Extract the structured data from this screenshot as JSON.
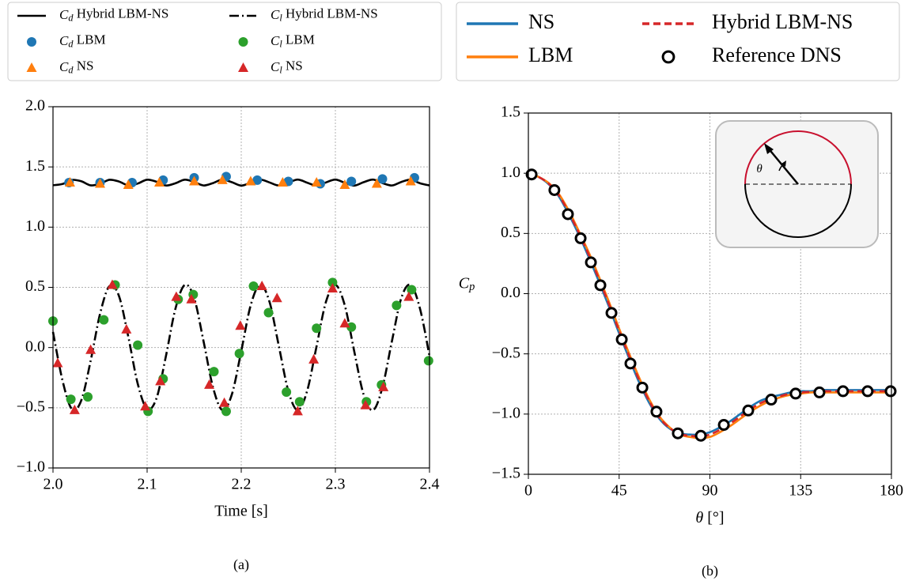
{
  "chart_data": [
    {
      "type": "line",
      "panel_label": "(a)",
      "xlabel": "Time [s]",
      "xlim": [
        2.0,
        2.4
      ],
      "xticks": [
        {
          "value": 2.0,
          "label": "2.0"
        },
        {
          "value": 2.1,
          "label": "2.1"
        },
        {
          "value": 2.2,
          "label": "2.2"
        },
        {
          "value": 2.3,
          "label": "2.3"
        },
        {
          "value": 2.4,
          "label": "2.4"
        }
      ],
      "ylim": [
        -1.0,
        2.0
      ],
      "yticks": [
        {
          "value": -1.0,
          "label": "−1.0"
        },
        {
          "value": -0.5,
          "label": "−0.5"
        },
        {
          "value": 0.0,
          "label": "0.0"
        },
        {
          "value": 0.5,
          "label": "0.5"
        },
        {
          "value": 1.0,
          "label": "1.0"
        },
        {
          "value": 1.5,
          "label": "1.5"
        },
        {
          "value": 2.0,
          "label": "2.0"
        }
      ],
      "grid": true,
      "series": [
        {
          "name": "Cd Hybrid LBM-NS",
          "color": "#000000",
          "style": "solid",
          "x": [
            2.0,
            2.01,
            2.02,
            2.03,
            2.04,
            2.05,
            2.06,
            2.07,
            2.08,
            2.09,
            2.1,
            2.11,
            2.12,
            2.13,
            2.14,
            2.15,
            2.16,
            2.17,
            2.18,
            2.19,
            2.2,
            2.21,
            2.22,
            2.23,
            2.24,
            2.25,
            2.26,
            2.27,
            2.28,
            2.29,
            2.3,
            2.31,
            2.32,
            2.33,
            2.34,
            2.35,
            2.36,
            2.37,
            2.38,
            2.39,
            2.4
          ],
          "values": [
            1.348,
            1.358,
            1.392,
            1.381,
            1.347,
            1.36,
            1.393,
            1.379,
            1.347,
            1.362,
            1.394,
            1.377,
            1.346,
            1.364,
            1.394,
            1.375,
            1.346,
            1.366,
            1.395,
            1.373,
            1.345,
            1.368,
            1.395,
            1.371,
            1.345,
            1.369,
            1.395,
            1.369,
            1.345,
            1.371,
            1.395,
            1.368,
            1.345,
            1.373,
            1.395,
            1.366,
            1.346,
            1.375,
            1.394,
            1.364,
            1.346
          ]
        },
        {
          "name": "Cd LBM",
          "color": "#1f77b4",
          "style": "marker",
          "marker": "circle",
          "x": [
            2.017,
            2.05,
            2.084,
            2.117,
            2.15,
            2.184,
            2.217,
            2.25,
            2.284,
            2.317,
            2.35,
            2.384
          ],
          "values": [
            1.37,
            1.37,
            1.37,
            1.39,
            1.41,
            1.42,
            1.39,
            1.38,
            1.36,
            1.38,
            1.4,
            1.41
          ]
        },
        {
          "name": "Cd NS",
          "color": "#ff7f0e",
          "style": "marker",
          "marker": "triangle",
          "x": [
            2.018,
            2.05,
            2.08,
            2.113,
            2.15,
            2.18,
            2.21,
            2.244,
            2.28,
            2.31,
            2.344,
            2.38
          ],
          "values": [
            1.37,
            1.36,
            1.35,
            1.37,
            1.38,
            1.39,
            1.38,
            1.37,
            1.37,
            1.35,
            1.36,
            1.38
          ]
        },
        {
          "name": "Cl Hybrid LBM-NS",
          "color": "#000000",
          "style": "dashdot",
          "x": [
            2.0,
            2.01,
            2.02,
            2.03,
            2.04,
            2.05,
            2.06,
            2.07,
            2.08,
            2.09,
            2.1,
            2.11,
            2.12,
            2.13,
            2.14,
            2.15,
            2.16,
            2.17,
            2.18,
            2.19,
            2.2,
            2.21,
            2.22,
            2.23,
            2.24,
            2.25,
            2.26,
            2.27,
            2.28,
            2.29,
            2.3,
            2.31,
            2.32,
            2.33,
            2.34,
            2.35,
            2.36,
            2.37,
            2.38,
            2.39,
            2.4
          ],
          "values": [
            0.13,
            -0.27,
            -0.51,
            -0.44,
            -0.11,
            0.28,
            0.51,
            0.43,
            0.09,
            -0.3,
            -0.51,
            -0.42,
            -0.07,
            0.32,
            0.52,
            0.41,
            0.05,
            -0.33,
            -0.52,
            -0.39,
            -0.03,
            0.35,
            0.52,
            0.38,
            0.01,
            -0.36,
            -0.52,
            -0.36,
            0.01,
            0.38,
            0.52,
            0.35,
            -0.03,
            -0.39,
            -0.52,
            -0.33,
            0.05,
            0.41,
            0.52,
            0.32,
            -0.07
          ]
        },
        {
          "name": "Cl LBM",
          "color": "#2ca02c",
          "style": "marker",
          "marker": "circle",
          "x": [
            2.0,
            2.019,
            2.037,
            2.054,
            2.066,
            2.09,
            2.101,
            2.117,
            2.133,
            2.149,
            2.171,
            2.184,
            2.198,
            2.213,
            2.229,
            2.248,
            2.262,
            2.28,
            2.297,
            2.317,
            2.333,
            2.349,
            2.365,
            2.381,
            2.399
          ],
          "values": [
            0.22,
            -0.43,
            -0.41,
            0.23,
            0.52,
            0.02,
            -0.53,
            -0.26,
            0.4,
            0.44,
            -0.2,
            -0.53,
            -0.05,
            0.51,
            0.29,
            -0.37,
            -0.45,
            0.16,
            0.54,
            0.17,
            -0.45,
            -0.31,
            0.35,
            0.48,
            -0.11
          ]
        },
        {
          "name": "Cl NS",
          "color": "#d62728",
          "style": "marker",
          "marker": "triangle",
          "x": [
            2.005,
            2.023,
            2.04,
            2.063,
            2.078,
            2.098,
            2.114,
            2.131,
            2.147,
            2.166,
            2.182,
            2.199,
            2.222,
            2.238,
            2.26,
            2.277,
            2.297,
            2.31,
            2.332,
            2.351,
            2.378
          ],
          "values": [
            -0.13,
            -0.52,
            -0.02,
            0.52,
            0.15,
            -0.49,
            -0.28,
            0.42,
            0.4,
            -0.31,
            -0.46,
            0.18,
            0.51,
            0.41,
            -0.53,
            -0.1,
            0.49,
            0.2,
            -0.48,
            -0.33,
            0.42
          ]
        }
      ]
    },
    {
      "type": "line",
      "panel_label": "(b)",
      "xlabel": "θ [°]",
      "ylabel": "Cp",
      "annotation": "θ",
      "xlim": [
        0,
        180
      ],
      "xticks": [
        0,
        45,
        90,
        135,
        180
      ],
      "ylim": [
        -1.5,
        1.5
      ],
      "yticks": [
        {
          "value": -1.5,
          "label": "−1.5"
        },
        {
          "value": -1.0,
          "label": "−1.0"
        },
        {
          "value": -0.5,
          "label": "−0.5"
        },
        {
          "value": 0.0,
          "label": "0.0"
        },
        {
          "value": 0.5,
          "label": "0.5"
        },
        {
          "value": 1.0,
          "label": "1.0"
        },
        {
          "value": 1.5,
          "label": "1.5"
        }
      ],
      "grid": true,
      "series": [
        {
          "name": "NS",
          "color": "#1f77b4",
          "style": "solid",
          "x": [
            0,
            5,
            10,
            15,
            20,
            25,
            30,
            35,
            40,
            45,
            50,
            55,
            60,
            65,
            70,
            75,
            80,
            85,
            90,
            95,
            100,
            105,
            110,
            115,
            120,
            125,
            130,
            135,
            140,
            145,
            150,
            155,
            160,
            165,
            170,
            175,
            180
          ],
          "values": [
            1.0,
            0.97,
            0.91,
            0.81,
            0.66,
            0.49,
            0.3,
            0.1,
            -0.11,
            -0.33,
            -0.54,
            -0.74,
            -0.91,
            -1.04,
            -1.12,
            -1.16,
            -1.17,
            -1.17,
            -1.15,
            -1.11,
            -1.06,
            -1.0,
            -0.94,
            -0.89,
            -0.86,
            -0.84,
            -0.82,
            -0.81,
            -0.81,
            -0.8,
            -0.8,
            -0.8,
            -0.8,
            -0.8,
            -0.8,
            -0.8,
            -0.8
          ]
        },
        {
          "name": "LBM",
          "color": "#ff7f0e",
          "style": "solid",
          "x": [
            0,
            5,
            10,
            15,
            20,
            25,
            30,
            35,
            40,
            45,
            50,
            55,
            60,
            65,
            70,
            75,
            80,
            85,
            90,
            95,
            100,
            105,
            110,
            115,
            120,
            125,
            130,
            135,
            140,
            145,
            150,
            155,
            160,
            165,
            170,
            175,
            180
          ],
          "values": [
            1.0,
            0.97,
            0.92,
            0.83,
            0.69,
            0.52,
            0.34,
            0.14,
            -0.07,
            -0.29,
            -0.5,
            -0.7,
            -0.88,
            -1.02,
            -1.11,
            -1.17,
            -1.19,
            -1.2,
            -1.19,
            -1.15,
            -1.1,
            -1.04,
            -0.98,
            -0.93,
            -0.89,
            -0.86,
            -0.84,
            -0.83,
            -0.82,
            -0.82,
            -0.82,
            -0.82,
            -0.82,
            -0.82,
            -0.82,
            -0.82,
            -0.82
          ]
        },
        {
          "name": "Hybrid LBM-NS",
          "color": "#d62728",
          "style": "dashed",
          "x": [
            0,
            5,
            10,
            15,
            20,
            25,
            30,
            35,
            40,
            45,
            50,
            55,
            60,
            65,
            70,
            75,
            80,
            85,
            90,
            95,
            100,
            105,
            110,
            115,
            120,
            125,
            130,
            135,
            140,
            145,
            150,
            155,
            160,
            165,
            170,
            175,
            180
          ],
          "values": [
            1.0,
            0.97,
            0.915,
            0.82,
            0.675,
            0.505,
            0.32,
            0.12,
            -0.09,
            -0.31,
            -0.52,
            -0.72,
            -0.895,
            -1.03,
            -1.115,
            -1.165,
            -1.18,
            -1.185,
            -1.17,
            -1.13,
            -1.08,
            -1.02,
            -0.96,
            -0.91,
            -0.875,
            -0.85,
            -0.83,
            -0.82,
            -0.815,
            -0.81,
            -0.81,
            -0.81,
            -0.81,
            -0.81,
            -0.81,
            -0.81,
            -0.81
          ]
        },
        {
          "name": "Reference DNS",
          "color": "#000000",
          "style": "marker",
          "marker": "ring",
          "x": [
            1.6,
            12.9,
            19.6,
            25.9,
            31,
            35.7,
            41.2,
            46.3,
            50.6,
            56.5,
            63.5,
            74.1,
            85.5,
            96.9,
            109,
            120.4,
            132.5,
            144.3,
            156,
            168.2,
            179.6
          ],
          "values": [
            0.99,
            0.86,
            0.66,
            0.46,
            0.26,
            0.07,
            -0.16,
            -0.38,
            -0.58,
            -0.78,
            -0.98,
            -1.16,
            -1.18,
            -1.09,
            -0.97,
            -0.88,
            -0.83,
            -0.82,
            -0.81,
            -0.81,
            -0.81
          ]
        }
      ]
    }
  ]
}
